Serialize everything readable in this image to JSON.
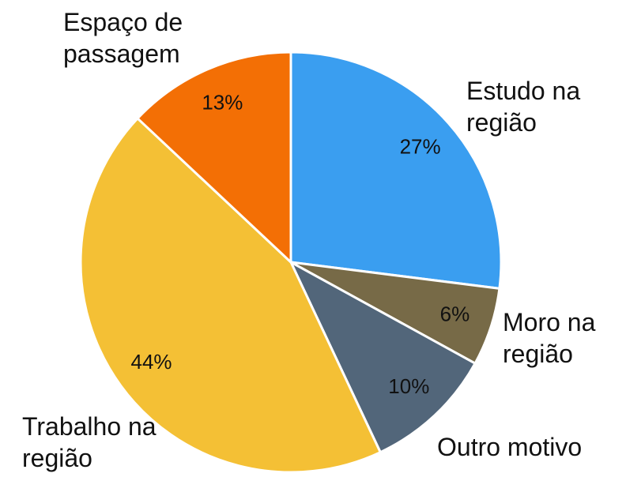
{
  "chart_data": {
    "type": "pie",
    "categories": [
      "Estudo na região",
      "Moro na região",
      "Outro motivo",
      "Trabalho na região",
      "Espaço de passagem"
    ],
    "values": [
      27,
      6,
      10,
      44,
      13
    ],
    "value_labels": [
      "27%",
      "6%",
      "10%",
      "44%",
      "13%"
    ],
    "colors": [
      "#3a9ef0",
      "#776a47",
      "#52667a",
      "#f4c035",
      "#f36f05"
    ]
  }
}
